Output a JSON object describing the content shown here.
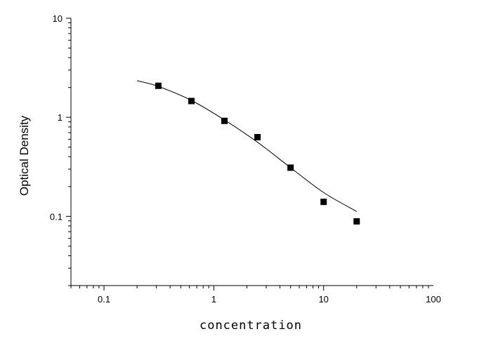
{
  "chart_data": {
    "type": "scatter",
    "title": "",
    "xlabel": "concentration",
    "ylabel": "Optical Density",
    "xscale": "log",
    "yscale": "log",
    "xlim": [
      0.05,
      100
    ],
    "ylim": [
      0.02,
      10
    ],
    "x_ticks": [
      0.1,
      1,
      10,
      100
    ],
    "x_tick_labels": [
      "0.1",
      "1",
      "10",
      "100"
    ],
    "y_ticks": [
      10,
      1,
      0.1
    ],
    "y_tick_labels": [
      "10",
      "1",
      "0.1"
    ],
    "grid": false,
    "legend": "none",
    "series": [
      {
        "type": "scatter",
        "marker": "square",
        "color": "#000000",
        "x": [
          0.3125,
          0.625,
          1.25,
          2.5,
          5,
          10,
          20
        ],
        "y": [
          2.08,
          1.46,
          0.92,
          0.63,
          0.31,
          0.14,
          0.089
        ]
      },
      {
        "type": "line",
        "style": "fitted curve",
        "color": "#000000",
        "x": [
          0.2,
          0.3125,
          0.625,
          1.25,
          2.5,
          5,
          10,
          20
        ],
        "y": [
          2.34,
          2.05,
          1.48,
          0.94,
          0.56,
          0.31,
          0.174,
          0.112
        ]
      }
    ]
  }
}
